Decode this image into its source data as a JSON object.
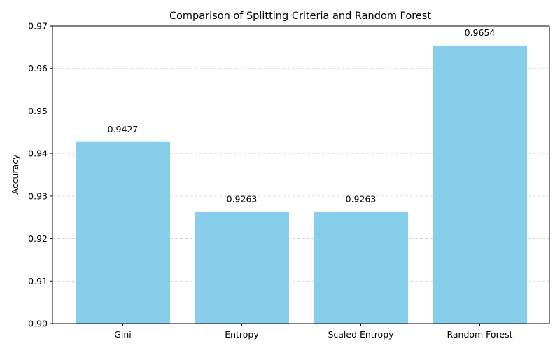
{
  "chart_data": {
    "type": "bar",
    "title": "Comparison of Splitting Criteria and Random Forest",
    "xlabel": "",
    "ylabel": "Accuracy",
    "categories": [
      "Gini",
      "Entropy",
      "Scaled Entropy",
      "Random Forest"
    ],
    "values": [
      0.9427,
      0.9263,
      0.9263,
      0.9654
    ],
    "value_labels": [
      "0.9427",
      "0.9263",
      "0.9263",
      "0.9654"
    ],
    "ylim": [
      0.9,
      0.97
    ],
    "yticks": [
      0.9,
      0.91,
      0.92,
      0.93,
      0.94,
      0.95,
      0.96,
      0.97
    ],
    "ytick_labels": [
      "0.90",
      "0.91",
      "0.92",
      "0.93",
      "0.94",
      "0.95",
      "0.96",
      "0.97"
    ],
    "grid": {
      "axis": "y",
      "style": "dashed",
      "color": "#cccccc"
    },
    "legend": "none",
    "bar_color": "#87ceeb"
  }
}
